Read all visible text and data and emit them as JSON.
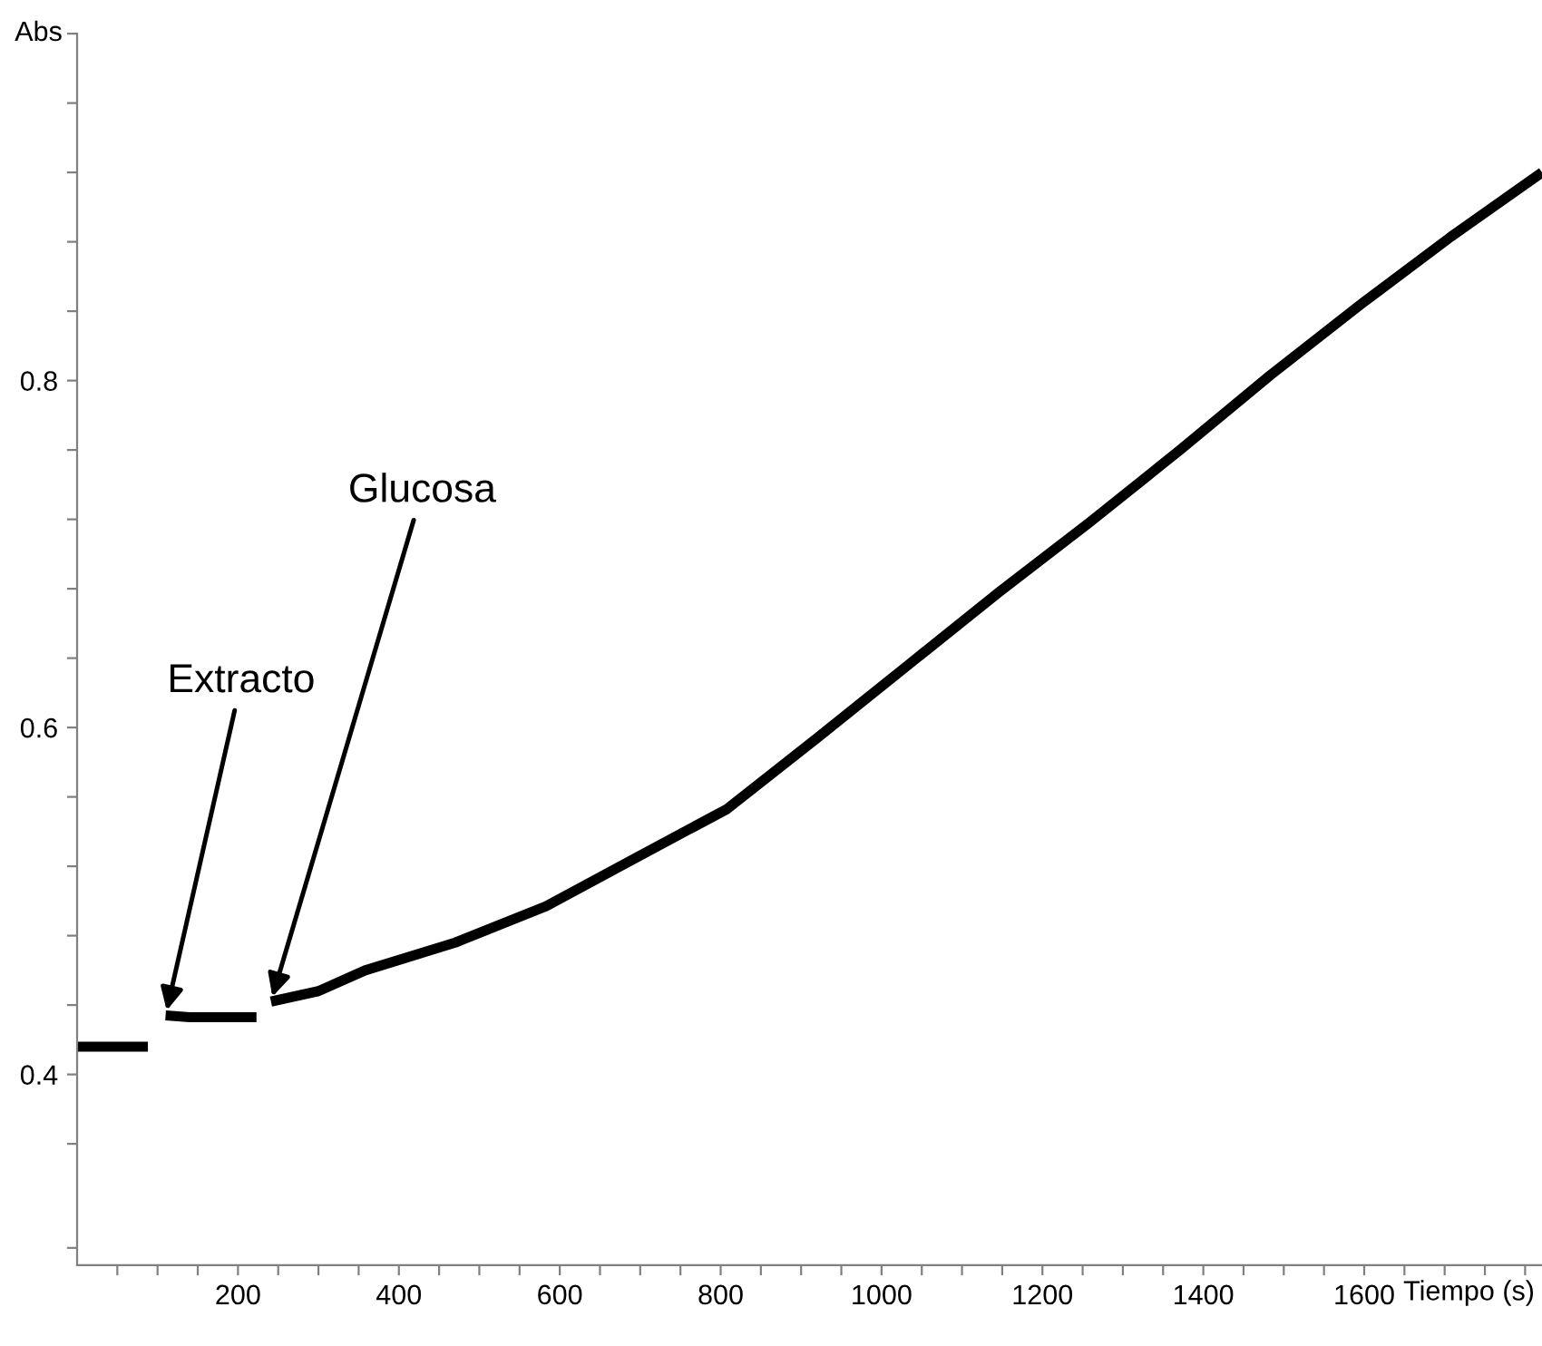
{
  "chart_data": {
    "type": "line",
    "xlabel": "Tiempo (s)",
    "ylabel": "Abs",
    "x": [
      0,
      20,
      40,
      60,
      88,
      100,
      110,
      140,
      170,
      200,
      223,
      232,
      241,
      300,
      358,
      470,
      583,
      695,
      808,
      920,
      1033,
      1146,
      1258,
      1371,
      1483,
      1596,
      1708,
      1821
    ],
    "series": [
      {
        "color": "#000000",
        "values": [
          0.416,
          0.416,
          0.416,
          0.416,
          0.416,
          null,
          0.434,
          0.433,
          0.433,
          0.433,
          0.433,
          null,
          0.442,
          0.448,
          0.46,
          0.476,
          0.497,
          0.525,
          0.553,
          0.594,
          0.636,
          0.678,
          0.718,
          0.76,
          0.803,
          0.844,
          0.883,
          0.92
        ]
      }
    ],
    "xlim": [
      0,
      1821
    ],
    "ylim": [
      0.29,
      1.0
    ],
    "xticks": [
      {
        "value": 50,
        "label": null
      },
      {
        "value": 100,
        "label": null
      },
      {
        "value": 150,
        "label": null
      },
      200,
      {
        "value": 250,
        "label": null
      },
      {
        "value": 300,
        "label": null
      },
      {
        "value": 350,
        "label": null
      },
      400,
      {
        "value": 450,
        "label": null
      },
      {
        "value": 500,
        "label": null
      },
      {
        "value": 550,
        "label": null
      },
      600,
      {
        "value": 650,
        "label": null
      },
      {
        "value": 700,
        "label": null
      },
      {
        "value": 750,
        "label": null
      },
      800,
      {
        "value": 850,
        "label": null
      },
      {
        "value": 900,
        "label": null
      },
      {
        "value": 950,
        "label": null
      },
      1000,
      {
        "value": 1050,
        "label": null
      },
      {
        "value": 1100,
        "label": null
      },
      {
        "value": 1150,
        "label": null
      },
      1200,
      {
        "value": 1250,
        "label": null
      },
      {
        "value": 1300,
        "label": null
      },
      {
        "value": 1350,
        "label": null
      },
      1400,
      {
        "value": 1450,
        "label": null
      },
      {
        "value": 1500,
        "label": null
      },
      {
        "value": 1550,
        "label": null
      },
      1600,
      {
        "value": 1650,
        "label": null
      },
      {
        "value": 1700,
        "label": null
      },
      {
        "value": 1750,
        "label": null
      },
      {
        "value": 1800,
        "label": null
      }
    ],
    "yticks": [
      {
        "value": 0.3,
        "label": null
      },
      {
        "value": 0.36,
        "label": null
      },
      0.4,
      {
        "value": 0.44,
        "label": null
      },
      {
        "value": 0.48,
        "label": null
      },
      {
        "value": 0.52,
        "label": null
      },
      {
        "value": 0.56,
        "label": null
      },
      0.6,
      {
        "value": 0.64,
        "label": null
      },
      {
        "value": 0.68,
        "label": null
      },
      {
        "value": 0.72,
        "label": null
      },
      {
        "value": 0.76,
        "label": null
      },
      0.8,
      {
        "value": 0.84,
        "label": null
      },
      {
        "value": 0.88,
        "label": null
      },
      {
        "value": 0.92,
        "label": null
      },
      {
        "value": 0.96,
        "label": null
      },
      {
        "value": 1.0,
        "label": null
      }
    ],
    "annotations": [
      {
        "text": "Extracto",
        "x": 110,
        "y": 0.434
      },
      {
        "text": "Glucosa",
        "x": 241,
        "y": 0.442
      }
    ],
    "grid": false,
    "legend": false,
    "marker": "none",
    "line_style": "solid"
  }
}
